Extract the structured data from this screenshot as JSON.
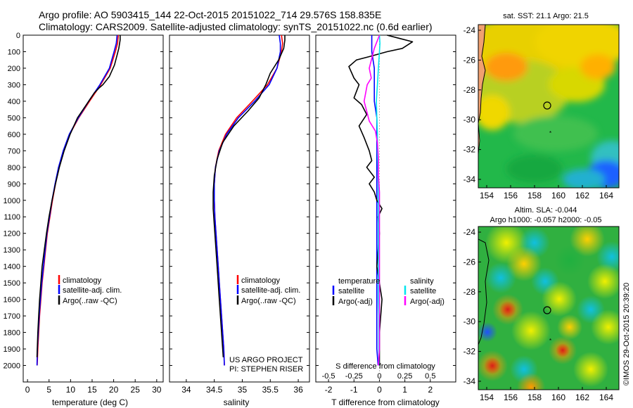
{
  "header": {
    "line1": "Argo profile: AO 5903415_144 22-Oct-2015 20151022_714 29.576S 158.835E",
    "line2": "Climatology: CARS2009. Satellite-adjusted climatology: synTS_20151022.nc (0.6d earlier)"
  },
  "colors": {
    "climatology": "#ff0000",
    "satellite": "#0000ff",
    "argo": "#000000",
    "sal_satellite": "#00e5ee",
    "sal_argo": "#ff00ff"
  },
  "chart_data": [
    {
      "type": "line",
      "name": "temperature-profile",
      "xlabel": "temperature (deg C)",
      "ylabel": "",
      "xlim": [
        -1,
        31.5
      ],
      "ylim": [
        2100,
        0
      ],
      "xticks": [
        0,
        5,
        10,
        15,
        20,
        25,
        30
      ],
      "yticks": [
        0,
        100,
        200,
        300,
        400,
        500,
        600,
        700,
        800,
        900,
        1000,
        1100,
        1200,
        1300,
        1400,
        1500,
        1600,
        1700,
        1800,
        1900,
        2000
      ],
      "legend": [
        "climatology",
        "satellite-adj. clim.",
        "Argo(..raw -QC)"
      ],
      "series": [
        {
          "name": "climatology",
          "color": "#ff0000",
          "x": [
            21.1,
            20.9,
            20.4,
            19.2,
            17.0,
            14.4,
            11.9,
            9.8,
            8.4,
            7.3,
            6.5,
            5.8,
            5.2,
            4.6,
            4.2,
            3.8,
            3.4,
            3.1,
            2.8,
            2.6,
            2.4,
            2.25
          ],
          "y": [
            0,
            50,
            100,
            200,
            300,
            400,
            500,
            600,
            700,
            800,
            900,
            1000,
            1100,
            1200,
            1300,
            1400,
            1500,
            1600,
            1700,
            1800,
            1900,
            2000
          ]
        },
        {
          "name": "satellite-adj. clim.",
          "color": "#0000ff",
          "x": [
            20.8,
            20.6,
            20.1,
            19.0,
            16.8,
            14.2,
            11.8,
            9.7,
            8.3,
            7.2,
            6.4,
            5.7,
            5.1,
            4.5,
            4.1,
            3.7,
            3.3,
            3.0,
            2.7,
            2.5,
            2.3,
            2.2
          ],
          "y": [
            0,
            50,
            100,
            200,
            300,
            400,
            500,
            600,
            700,
            800,
            900,
            1000,
            1100,
            1200,
            1300,
            1400,
            1500,
            1600,
            1700,
            1800,
            1900,
            2000
          ]
        },
        {
          "name": "Argo(..raw -QC)",
          "color": "#000000",
          "x": [
            21.5,
            21.5,
            21.2,
            20.8,
            20.2,
            19.0,
            17.5,
            16.6,
            15.5,
            14.2,
            11.6,
            9.9,
            8.5,
            7.4,
            6.5,
            5.7,
            5.0,
            4.4,
            3.9,
            3.4,
            3.1,
            2.8,
            2.6,
            2.4,
            2.2
          ],
          "y": [
            0,
            30,
            80,
            120,
            180,
            250,
            300,
            320,
            350,
            400,
            500,
            600,
            700,
            800,
            900,
            1000,
            1100,
            1200,
            1300,
            1400,
            1500,
            1600,
            1700,
            1800,
            1950
          ]
        }
      ]
    },
    {
      "type": "line",
      "name": "salinity-profile",
      "xlabel": "salinity",
      "xlim": [
        33.7,
        36.2
      ],
      "ylim": [
        2100,
        0
      ],
      "xticks": [
        34,
        34.5,
        35,
        35.5,
        36
      ],
      "legend": [
        "climatology",
        "satellite-adj. clim.",
        "Argo(..raw -QC)"
      ],
      "annotation": [
        "US ARGO PROJECT",
        "PI: STEPHEN RISER"
      ],
      "series": [
        {
          "name": "climatology",
          "color": "#ff0000",
          "x": [
            35.7,
            35.72,
            35.7,
            35.62,
            35.45,
            35.18,
            34.9,
            34.7,
            34.58,
            34.52,
            34.5,
            34.5,
            34.51,
            34.53,
            34.55,
            34.57,
            34.59,
            34.61,
            34.63,
            34.65,
            34.67,
            34.68
          ],
          "y": [
            0,
            50,
            100,
            200,
            300,
            400,
            500,
            600,
            700,
            800,
            900,
            1000,
            1100,
            1200,
            1300,
            1400,
            1500,
            1600,
            1700,
            1800,
            1900,
            2000
          ]
        },
        {
          "name": "satellite-adj. clim.",
          "color": "#0000ff",
          "x": [
            35.66,
            35.68,
            35.68,
            35.62,
            35.48,
            35.22,
            34.93,
            34.72,
            34.59,
            34.52,
            34.5,
            34.5,
            34.51,
            34.53,
            34.55,
            34.57,
            34.59,
            34.61,
            34.63,
            34.65,
            34.67,
            34.68
          ],
          "y": [
            0,
            50,
            100,
            200,
            300,
            400,
            500,
            600,
            700,
            800,
            900,
            1000,
            1100,
            1200,
            1300,
            1400,
            1500,
            1600,
            1700,
            1800,
            1900,
            2000
          ]
        },
        {
          "name": "Argo(..raw -QC)",
          "color": "#000000",
          "x": [
            35.76,
            35.76,
            35.74,
            35.65,
            35.5,
            35.42,
            35.3,
            35.1,
            34.85,
            34.65,
            34.55,
            34.5,
            34.48,
            34.48,
            34.5,
            34.52,
            34.54,
            34.56,
            34.58,
            34.6,
            34.62,
            34.64,
            34.66
          ],
          "y": [
            0,
            30,
            80,
            150,
            230,
            300,
            380,
            460,
            550,
            650,
            750,
            850,
            950,
            1050,
            1150,
            1250,
            1350,
            1450,
            1550,
            1650,
            1750,
            1850,
            1950
          ]
        }
      ]
    },
    {
      "type": "line",
      "name": "difference-profile",
      "xlabel": "T difference from climatology",
      "xlabel_top": "S difference from climatology",
      "t_xlim": [
        -2.5,
        3
      ],
      "t_xticks": [
        -2,
        -1,
        0,
        1,
        2
      ],
      "s_xticks": [
        -0.5,
        -0.25,
        0,
        0.25,
        0.5
      ],
      "s_tick_labels": [
        "-0.5",
        "-0.25",
        "0",
        "0.25",
        "0.5"
      ],
      "s_to_t_scale": 4,
      "ylim": [
        2100,
        0
      ],
      "legend": {
        "temperature_header": "temperature",
        "salinity_header": "salinity",
        "t_satellite": "satellite",
        "t_argo": "Argo(-adj)",
        "s_satellite": "satellite",
        "s_argo": "Argo(-adj)"
      },
      "series": [
        {
          "name": "T satellite",
          "color": "#0000ff",
          "axis": "T",
          "x": [
            -0.3,
            -0.3,
            -0.3,
            -0.2,
            -0.2,
            -0.2,
            -0.1,
            -0.1,
            -0.1,
            -0.1,
            -0.1,
            -0.1,
            -0.1,
            -0.1,
            -0.1,
            -0.1,
            -0.1,
            -0.1,
            -0.1,
            -0.1,
            -0.1,
            -0.05
          ],
          "y": [
            0,
            50,
            100,
            200,
            300,
            400,
            500,
            600,
            700,
            800,
            900,
            1000,
            1100,
            1200,
            1300,
            1400,
            1500,
            1600,
            1700,
            1800,
            1900,
            2000
          ]
        },
        {
          "name": "T Argo",
          "color": "#000000",
          "axis": "T",
          "x": [
            0.3,
            0.8,
            1.3,
            0.9,
            0.3,
            -0.4,
            -0.9,
            -1.2,
            -1.0,
            -0.8,
            -1.0,
            -0.7,
            -0.5,
            -0.8,
            -0.6,
            -0.4,
            -0.3,
            -0.5,
            -0.2,
            -0.4,
            -0.2,
            -0.1,
            0.1,
            -0.05,
            0.0,
            -0.1,
            0.1,
            0.0,
            0.0
          ],
          "y": [
            0,
            20,
            40,
            80,
            100,
            130,
            150,
            190,
            260,
            300,
            380,
            420,
            480,
            550,
            620,
            700,
            760,
            800,
            860,
            900,
            950,
            1000,
            1050,
            1100,
            1200,
            1400,
            1600,
            1800,
            2000
          ]
        },
        {
          "name": "S satellite",
          "color": "#00e5ee",
          "axis": "S",
          "x": [
            0.0,
            0.005,
            0.0,
            -0.01,
            -0.02,
            -0.03,
            -0.025,
            -0.02,
            -0.02,
            -0.015,
            -0.01,
            -0.01,
            -0.01,
            -0.01,
            -0.01,
            -0.01,
            -0.01,
            -0.01,
            -0.005,
            -0.005,
            -0.005,
            -0.005
          ],
          "y": [
            0,
            50,
            100,
            200,
            300,
            400,
            500,
            600,
            700,
            800,
            900,
            1000,
            1100,
            1200,
            1300,
            1400,
            1500,
            1600,
            1700,
            1800,
            1900,
            2000
          ]
        },
        {
          "name": "S Argo",
          "color": "#ff00ff",
          "axis": "S",
          "x": [
            0.0,
            -0.05,
            -0.1,
            -0.08,
            -0.12,
            -0.15,
            -0.1,
            -0.04,
            -0.02,
            -0.01,
            -0.01,
            0.0,
            0.0,
            0.0,
            0.0,
            0.0,
            0.0,
            0.0,
            0.0,
            -0.01
          ],
          "y": [
            0,
            80,
            200,
            260,
            300,
            400,
            520,
            580,
            650,
            750,
            850,
            950,
            1050,
            1200,
            1400,
            1600,
            1700,
            1800,
            1900,
            2000
          ]
        }
      ]
    }
  ],
  "maps": {
    "sst": {
      "title": "sat. SST: 21.1  Argo: 21.5",
      "yticks": [
        "-24",
        "-26",
        "-28",
        "-30",
        "-32",
        "-34"
      ],
      "xticks": [
        "154",
        "156",
        "158",
        "160",
        "162",
        "164"
      ]
    },
    "sla": {
      "title_line1": "Altim. SLA: -0.044",
      "title_line2": "Argo h1000: -0.057 h2000: -0.05",
      "yticks": [
        "-24",
        "-26",
        "-28",
        "-30",
        "-32",
        "-34"
      ],
      "xticks": [
        "154",
        "156",
        "158",
        "160",
        "162",
        "164"
      ]
    }
  },
  "credit": "©IMOS 29-Oct-2015 20:39:20"
}
